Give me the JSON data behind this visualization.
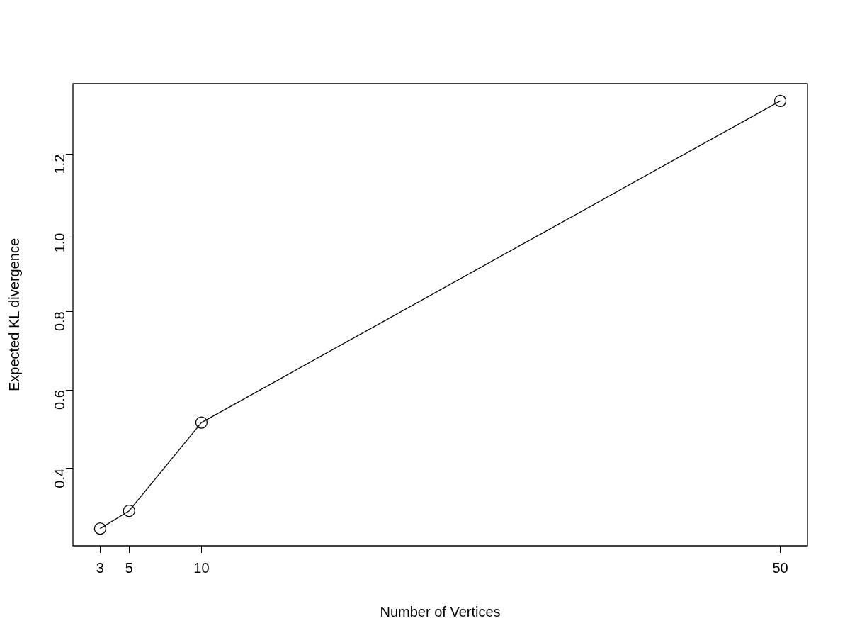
{
  "chart_data": {
    "type": "line",
    "xlabel": "Number of Vertices",
    "ylabel": "Expected KL divergence",
    "x": [
      3,
      5,
      10,
      50
    ],
    "series": [
      {
        "color": "#000000",
        "values": [
          0.247,
          0.292,
          0.517,
          1.336
        ]
      }
    ],
    "xlim": [
      1.12,
      51.88
    ],
    "xticks": [
      3,
      5,
      10,
      50
    ],
    "ylim": [
      0.203,
      1.38
    ],
    "yticks": [
      0.4,
      0.6,
      0.8,
      {
        "value": 1,
        "label": "1.0"
      },
      1.2
    ],
    "grid": false,
    "legend": false,
    "marker": "circle",
    "line_style": "solid"
  }
}
